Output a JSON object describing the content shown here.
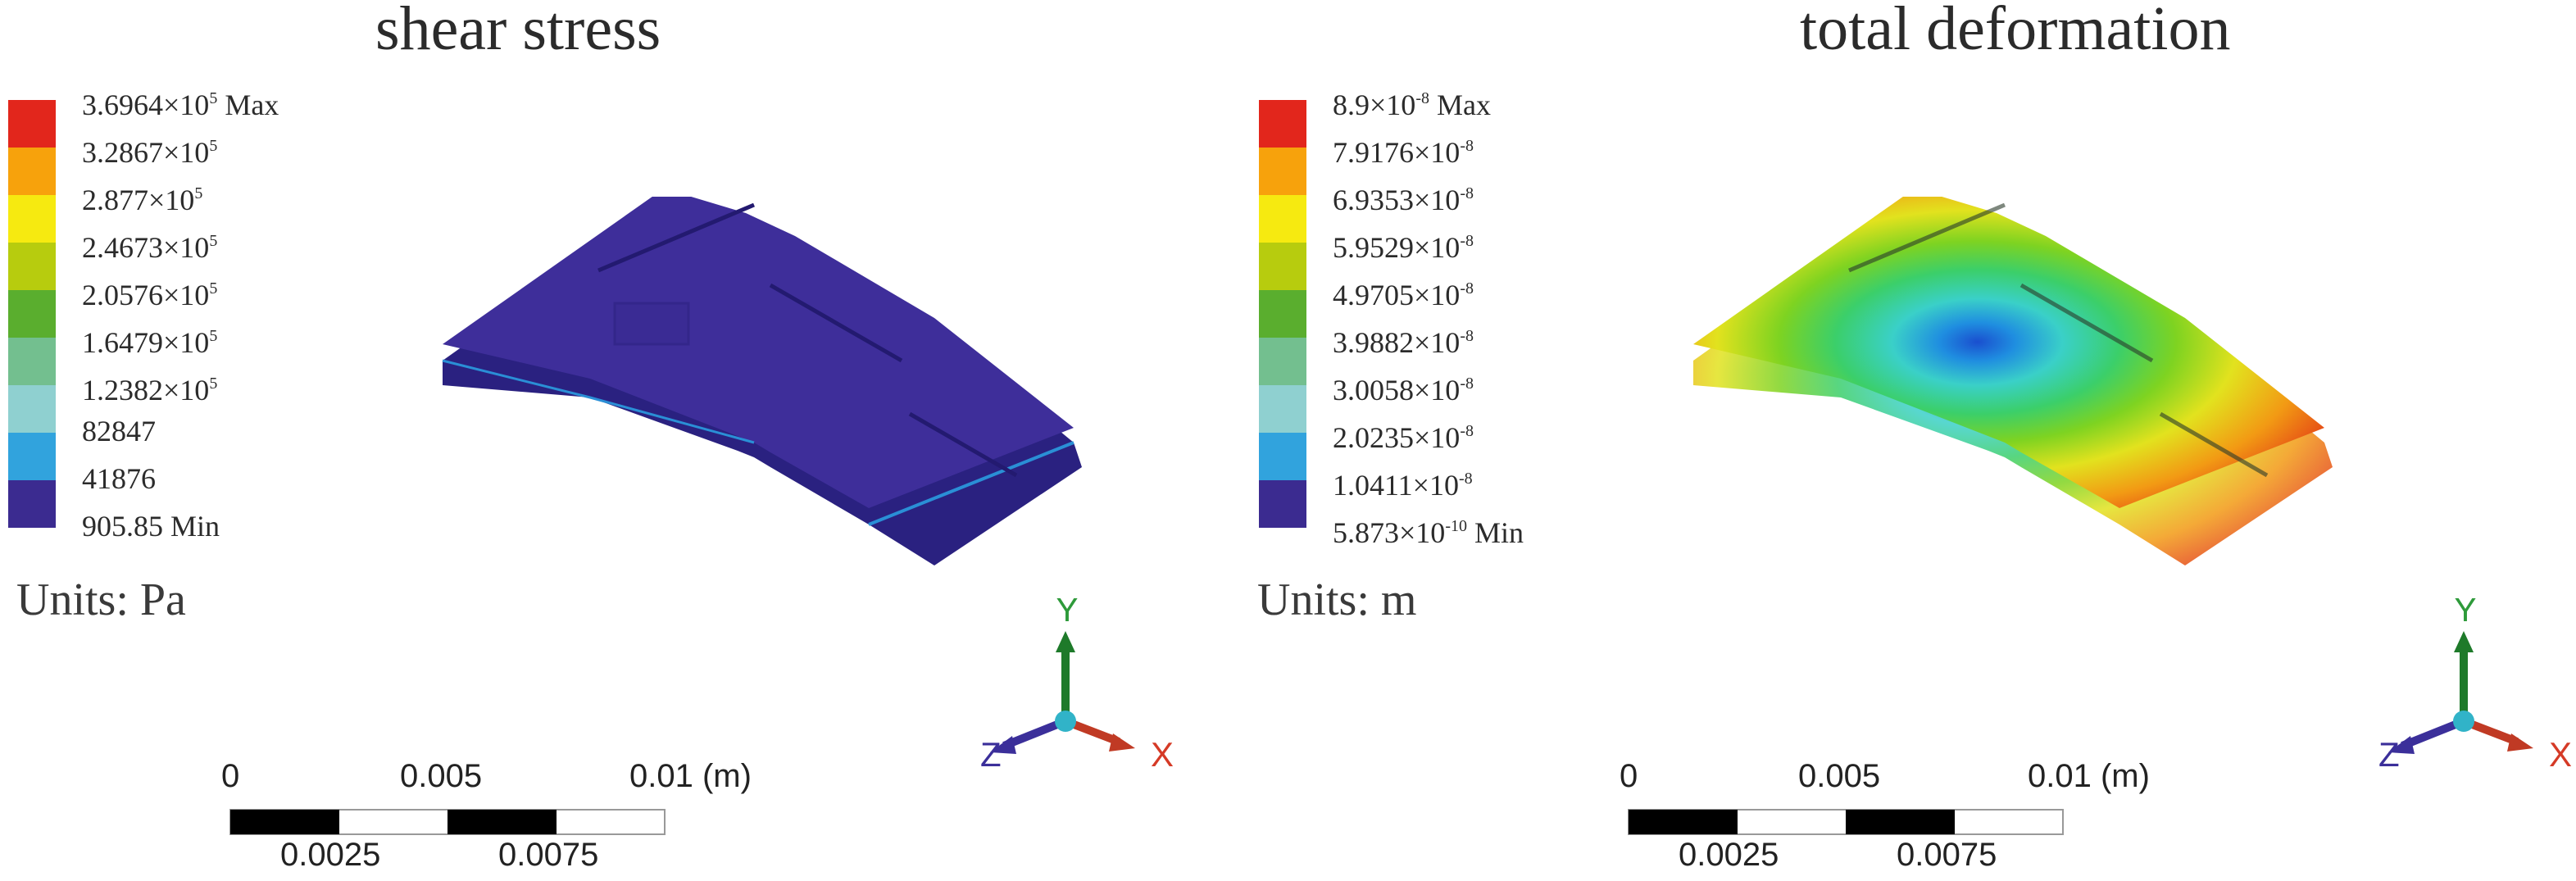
{
  "panels": [
    {
      "title": "shear stress",
      "legend": [
        {
          "mantissa": "3.6964×10",
          "exp": "5",
          "suffix": " Max",
          "color": "#e2261c"
        },
        {
          "mantissa": "3.2867×10",
          "exp": "5",
          "suffix": "",
          "color": "#f7a20c"
        },
        {
          "mantissa": "2.877×10",
          "exp": "5",
          "suffix": "",
          "color": "#f6ea10"
        },
        {
          "mantissa": "2.4673×10",
          "exp": "5",
          "suffix": "",
          "color": "#b7cc0e"
        },
        {
          "mantissa": "2.0576×10",
          "exp": "5",
          "suffix": "",
          "color": "#5aae2e"
        },
        {
          "mantissa": "1.6479×10",
          "exp": "5",
          "suffix": "",
          "color": "#73bf8f"
        },
        {
          "mantissa": "1.2382×10",
          "exp": "5",
          "suffix": "",
          "color": "#8fd0d0"
        },
        {
          "mantissa": "82847",
          "exp": "",
          "suffix": "",
          "color": "#31a3dd"
        },
        {
          "mantissa": "41876",
          "exp": "",
          "suffix": "",
          "color": "#3b2b90"
        },
        {
          "mantissa": "905.85",
          "exp": "",
          "suffix": " Min",
          "color": ""
        }
      ],
      "units": "Units: Pa",
      "scale": {
        "top_labels": [
          "0",
          "0.005",
          "0.01 (m)"
        ],
        "bottom_labels": [
          "0.0025",
          "0.0075"
        ]
      },
      "triad": {
        "x": "X",
        "y": "Y",
        "z": "Z"
      }
    },
    {
      "title": "total deformation",
      "legend": [
        {
          "mantissa": "8.9×10",
          "exp": "-8",
          "suffix": " Max",
          "color": "#e2261c"
        },
        {
          "mantissa": "7.9176×10",
          "exp": "-8",
          "suffix": "",
          "color": "#f7a20c"
        },
        {
          "mantissa": "6.9353×10",
          "exp": "-8",
          "suffix": "",
          "color": "#f6ea10"
        },
        {
          "mantissa": "5.9529×10",
          "exp": "-8",
          "suffix": "",
          "color": "#b7cc0e"
        },
        {
          "mantissa": "4.9705×10",
          "exp": "-8",
          "suffix": "",
          "color": "#5aae2e"
        },
        {
          "mantissa": "3.9882×10",
          "exp": "-8",
          "suffix": "",
          "color": "#73bf8f"
        },
        {
          "mantissa": "3.0058×10",
          "exp": "-8",
          "suffix": "",
          "color": "#8fd0d0"
        },
        {
          "mantissa": "2.0235×10",
          "exp": "-8",
          "suffix": "",
          "color": "#31a3dd"
        },
        {
          "mantissa": "1.0411×10",
          "exp": "-8",
          "suffix": "",
          "color": "#3b2b90"
        },
        {
          "mantissa": "5.873×10",
          "exp": "-10",
          "suffix": " Min",
          "color": ""
        }
      ],
      "units": "Units: m",
      "scale": {
        "top_labels": [
          "0",
          "0.005",
          "0.01 (m)"
        ],
        "bottom_labels": [
          "0.0025",
          "0.0075"
        ]
      },
      "triad": {
        "x": "X",
        "y": "Y",
        "z": "Z"
      }
    }
  ]
}
